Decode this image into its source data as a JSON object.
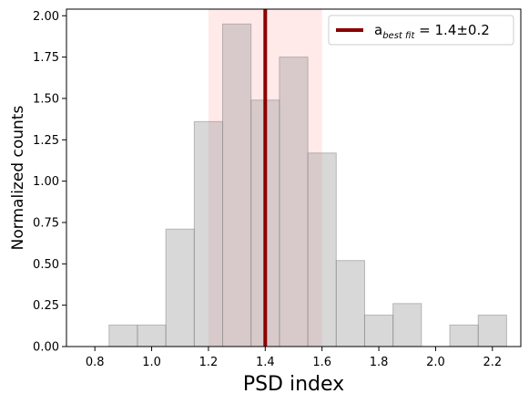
{
  "chart_data": {
    "type": "bar",
    "title": "",
    "xlabel": "PSD index",
    "ylabel": "Normalized counts",
    "xlim": [
      0.7,
      2.3
    ],
    "ylim": [
      0.0,
      2.04
    ],
    "grid": false,
    "legend_placement": "top-right",
    "x_ticks": [
      "0.8",
      "1.0",
      "1.2",
      "1.4",
      "1.6",
      "1.8",
      "2.0",
      "2.2"
    ],
    "y_ticks": [
      "0.00",
      "0.25",
      "0.50",
      "0.75",
      "1.00",
      "1.25",
      "1.50",
      "1.75",
      "2.00"
    ],
    "bin_width": 0.1,
    "bins": [
      {
        "start": 0.85,
        "end": 0.95,
        "value": 0.13
      },
      {
        "start": 0.95,
        "end": 1.05,
        "value": 0.13
      },
      {
        "start": 1.05,
        "end": 1.15,
        "value": 0.71
      },
      {
        "start": 1.15,
        "end": 1.25,
        "value": 1.36
      },
      {
        "start": 1.25,
        "end": 1.35,
        "value": 1.95
      },
      {
        "start": 1.35,
        "end": 1.45,
        "value": 1.49
      },
      {
        "start": 1.45,
        "end": 1.55,
        "value": 1.75
      },
      {
        "start": 1.55,
        "end": 1.65,
        "value": 1.17
      },
      {
        "start": 1.65,
        "end": 1.75,
        "value": 0.52
      },
      {
        "start": 1.75,
        "end": 1.85,
        "value": 0.19
      },
      {
        "start": 1.85,
        "end": 1.95,
        "value": 0.26
      },
      {
        "start": 2.05,
        "end": 2.15,
        "value": 0.13
      },
      {
        "start": 2.15,
        "end": 2.25,
        "value": 0.19
      }
    ],
    "best_fit": 1.4,
    "uncertainty_band": [
      1.2,
      1.6
    ],
    "legend": {
      "symbol": "a",
      "subscript": "best fit",
      "value_text": " = 1.4±0.2"
    },
    "colors": {
      "bar_fill": "#d6d6d6",
      "bar_edge": "#b5b5b5",
      "band_fill": "#ffb7b7",
      "best_fit_line": "#8b0000",
      "axis": "#000000"
    }
  }
}
